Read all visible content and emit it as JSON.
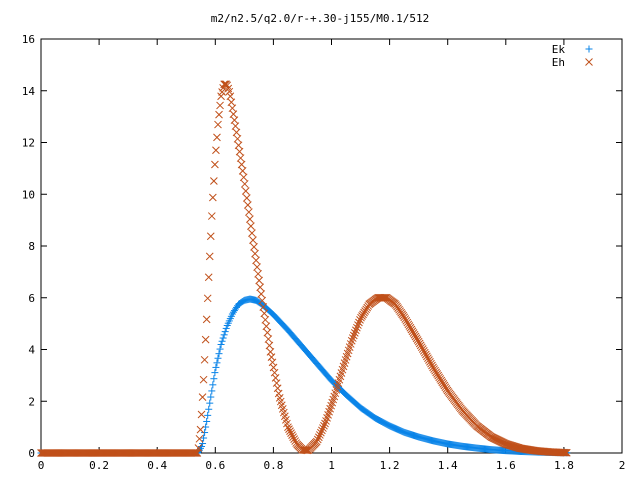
{
  "chart_data": {
    "type": "scatter",
    "title": "m2/n2.5/q2.0/r-+.30-j155/M0.1/512",
    "xlabel": "",
    "ylabel": "",
    "xlim": [
      0,
      2
    ],
    "ylim": [
      0,
      16
    ],
    "xticks": [
      "0",
      "0.2",
      "0.4",
      "0.6",
      "0.8",
      "1",
      "1.2",
      "1.4",
      "1.6",
      "1.8",
      "2"
    ],
    "yticks": [
      "0",
      "2",
      "4",
      "6",
      "8",
      "10",
      "12",
      "14",
      "16"
    ],
    "grid": false,
    "legend_position": "top-right",
    "series": [
      {
        "name": "Ek",
        "marker": "plus",
        "color": "#0a84e8",
        "x_range": [
          0,
          1.81
        ],
        "points": [
          [
            0.0,
            0.0
          ],
          [
            0.2,
            0.0
          ],
          [
            0.4,
            0.0
          ],
          [
            0.54,
            0.0
          ],
          [
            0.555,
            0.3
          ],
          [
            0.57,
            1.2
          ],
          [
            0.585,
            2.2
          ],
          [
            0.6,
            3.2
          ],
          [
            0.62,
            4.2
          ],
          [
            0.64,
            4.9
          ],
          [
            0.66,
            5.4
          ],
          [
            0.68,
            5.75
          ],
          [
            0.7,
            5.9
          ],
          [
            0.72,
            5.95
          ],
          [
            0.74,
            5.9
          ],
          [
            0.76,
            5.75
          ],
          [
            0.8,
            5.35
          ],
          [
            0.85,
            4.75
          ],
          [
            0.9,
            4.1
          ],
          [
            0.95,
            3.45
          ],
          [
            1.0,
            2.8
          ],
          [
            1.05,
            2.25
          ],
          [
            1.1,
            1.75
          ],
          [
            1.15,
            1.35
          ],
          [
            1.2,
            1.05
          ],
          [
            1.25,
            0.8
          ],
          [
            1.3,
            0.62
          ],
          [
            1.35,
            0.47
          ],
          [
            1.4,
            0.35
          ],
          [
            1.45,
            0.26
          ],
          [
            1.5,
            0.19
          ],
          [
            1.55,
            0.13
          ],
          [
            1.6,
            0.09
          ],
          [
            1.65,
            0.06
          ],
          [
            1.7,
            0.04
          ],
          [
            1.75,
            0.02
          ],
          [
            1.81,
            0.01
          ]
        ]
      },
      {
        "name": "Eh",
        "marker": "cross",
        "color": "#c0501a",
        "x_range": [
          0,
          1.81
        ],
        "points": [
          [
            0.0,
            0.0
          ],
          [
            0.2,
            0.0
          ],
          [
            0.4,
            0.0
          ],
          [
            0.54,
            0.0
          ],
          [
            0.55,
            1.0
          ],
          [
            0.56,
            2.9
          ],
          [
            0.57,
            5.1
          ],
          [
            0.58,
            7.4
          ],
          [
            0.59,
            9.6
          ],
          [
            0.6,
            11.4
          ],
          [
            0.61,
            12.8
          ],
          [
            0.62,
            13.8
          ],
          [
            0.63,
            14.25
          ],
          [
            0.64,
            14.25
          ],
          [
            0.65,
            13.9
          ],
          [
            0.67,
            12.6
          ],
          [
            0.7,
            10.5
          ],
          [
            0.73,
            8.2
          ],
          [
            0.76,
            6.0
          ],
          [
            0.79,
            3.9
          ],
          [
            0.82,
            2.2
          ],
          [
            0.85,
            1.0
          ],
          [
            0.88,
            0.35
          ],
          [
            0.9,
            0.12
          ],
          [
            0.92,
            0.1
          ],
          [
            0.95,
            0.45
          ],
          [
            0.98,
            1.2
          ],
          [
            1.01,
            2.2
          ],
          [
            1.04,
            3.3
          ],
          [
            1.07,
            4.35
          ],
          [
            1.1,
            5.2
          ],
          [
            1.13,
            5.75
          ],
          [
            1.16,
            6.0
          ],
          [
            1.19,
            6.0
          ],
          [
            1.22,
            5.75
          ],
          [
            1.25,
            5.25
          ],
          [
            1.3,
            4.3
          ],
          [
            1.35,
            3.3
          ],
          [
            1.4,
            2.4
          ],
          [
            1.45,
            1.65
          ],
          [
            1.5,
            1.05
          ],
          [
            1.55,
            0.62
          ],
          [
            1.6,
            0.35
          ],
          [
            1.65,
            0.18
          ],
          [
            1.7,
            0.09
          ],
          [
            1.75,
            0.04
          ],
          [
            1.81,
            0.01
          ]
        ]
      }
    ]
  }
}
